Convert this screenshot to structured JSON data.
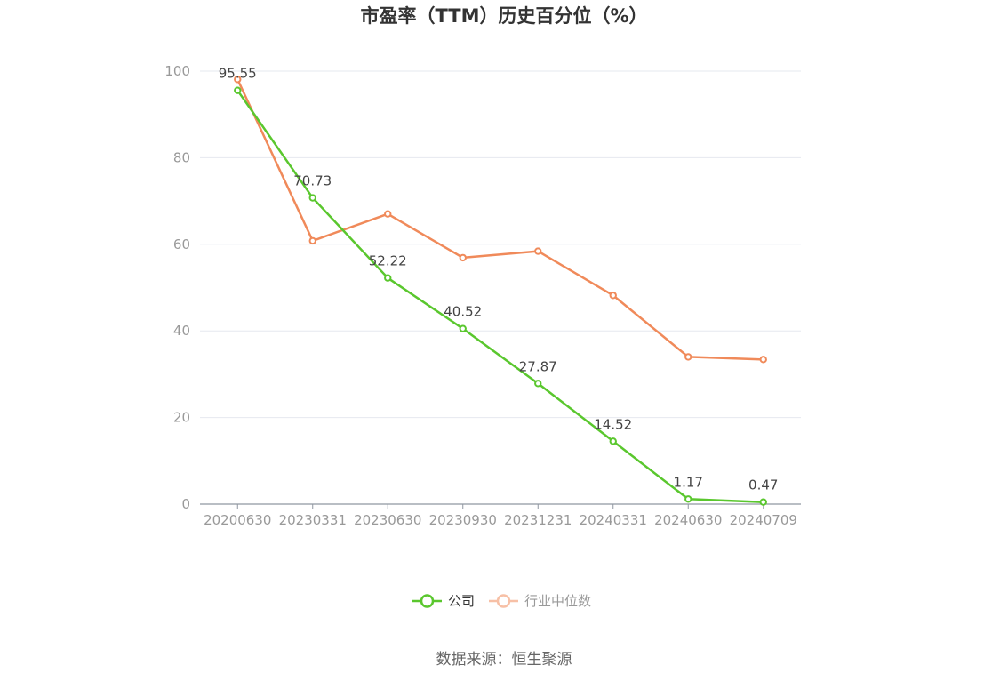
{
  "chart_data": {
    "type": "line",
    "title": "市盈率（TTM）历史百分位（%）",
    "categories": [
      "20200630",
      "20230331",
      "20230630",
      "20230930",
      "20231231",
      "20240331",
      "20240630",
      "20240709"
    ],
    "ylim": [
      0,
      100
    ],
    "yticks": [
      "0",
      "20",
      "40",
      "60",
      "80",
      "100"
    ],
    "grid": true,
    "legend_position": "bottom",
    "series": [
      {
        "name": "公司",
        "color": "#5ac72e",
        "values": [
          95.55,
          70.73,
          52.22,
          40.52,
          27.87,
          14.52,
          1.17,
          0.47
        ],
        "labels": [
          "95.55",
          "70.73",
          "52.22",
          "40.52",
          "27.87",
          "14.52",
          "1.17",
          "0.47"
        ]
      },
      {
        "name": "行业中位数",
        "color": "#f08a5a",
        "values": [
          98.1,
          60.8,
          67.0,
          56.9,
          58.4,
          48.2,
          34.0,
          33.4
        ]
      }
    ],
    "source": "数据来源：恒生聚源"
  }
}
